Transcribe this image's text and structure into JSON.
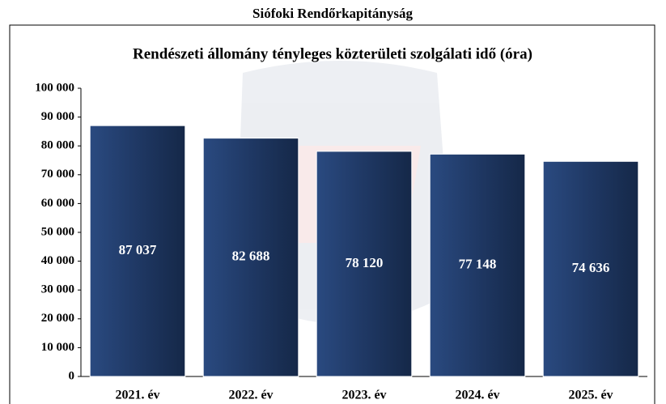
{
  "chart_data": {
    "type": "bar",
    "title": "Siófoki Rendőrkapitányság",
    "subtitle": "Rendészeti állomány tényleges közterületi szolgálati idő (óra)",
    "categories": [
      "2021. év",
      "2022. év",
      "2023. év",
      "2024. év",
      "2025. év"
    ],
    "values": [
      87037,
      82688,
      78120,
      77148,
      74636
    ],
    "value_labels": [
      "87 037",
      "82 688",
      "78 120",
      "77 148",
      "74 636"
    ],
    "color": "#1f3864",
    "ylim": [
      0,
      100000
    ],
    "yticks": [
      0,
      {
        "value": 10000,
        "label": "10 000"
      },
      {
        "value": 20000,
        "label": "20 000"
      },
      {
        "value": 30000,
        "label": "30 000"
      },
      {
        "value": 40000,
        "label": "40 000"
      },
      {
        "value": 50000,
        "label": "50 000"
      },
      {
        "value": 60000,
        "label": "60 000"
      },
      {
        "value": 70000,
        "label": "70 000"
      },
      {
        "value": 80000,
        "label": "80 000"
      },
      {
        "value": 90000,
        "label": "90 000"
      },
      {
        "value": 100000,
        "label": "100 000"
      }
    ]
  }
}
